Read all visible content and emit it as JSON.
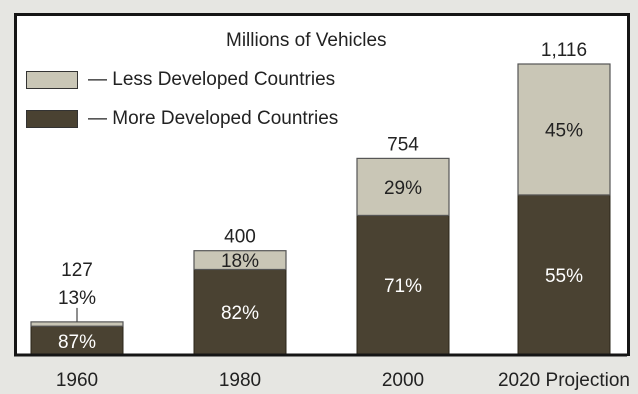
{
  "chart_data": {
    "type": "bar",
    "stacked": true,
    "title": "Millions of Vehicles",
    "categories": [
      "1960",
      "1980",
      "2000",
      "2020 Projection"
    ],
    "totals": [
      "127",
      "400",
      "754",
      "1,116"
    ],
    "total_values": [
      127,
      400,
      754,
      1116
    ],
    "series": [
      {
        "name": "— More Developed Countries",
        "color": "#4a4232",
        "values": [
          110.5,
          328,
          535.3,
          613.8
        ],
        "percent_labels": [
          "87%",
          "82%",
          "71%",
          "55%"
        ]
      },
      {
        "name": "— Less Developed Countries",
        "color": "#c9c6b6",
        "values": [
          16.5,
          72,
          218.7,
          502.2
        ],
        "percent_labels": [
          "13%",
          "18%",
          "29%",
          "45%"
        ]
      }
    ],
    "ylim": [
      0,
      1116
    ],
    "grid": false,
    "legend_position": "top-left"
  }
}
